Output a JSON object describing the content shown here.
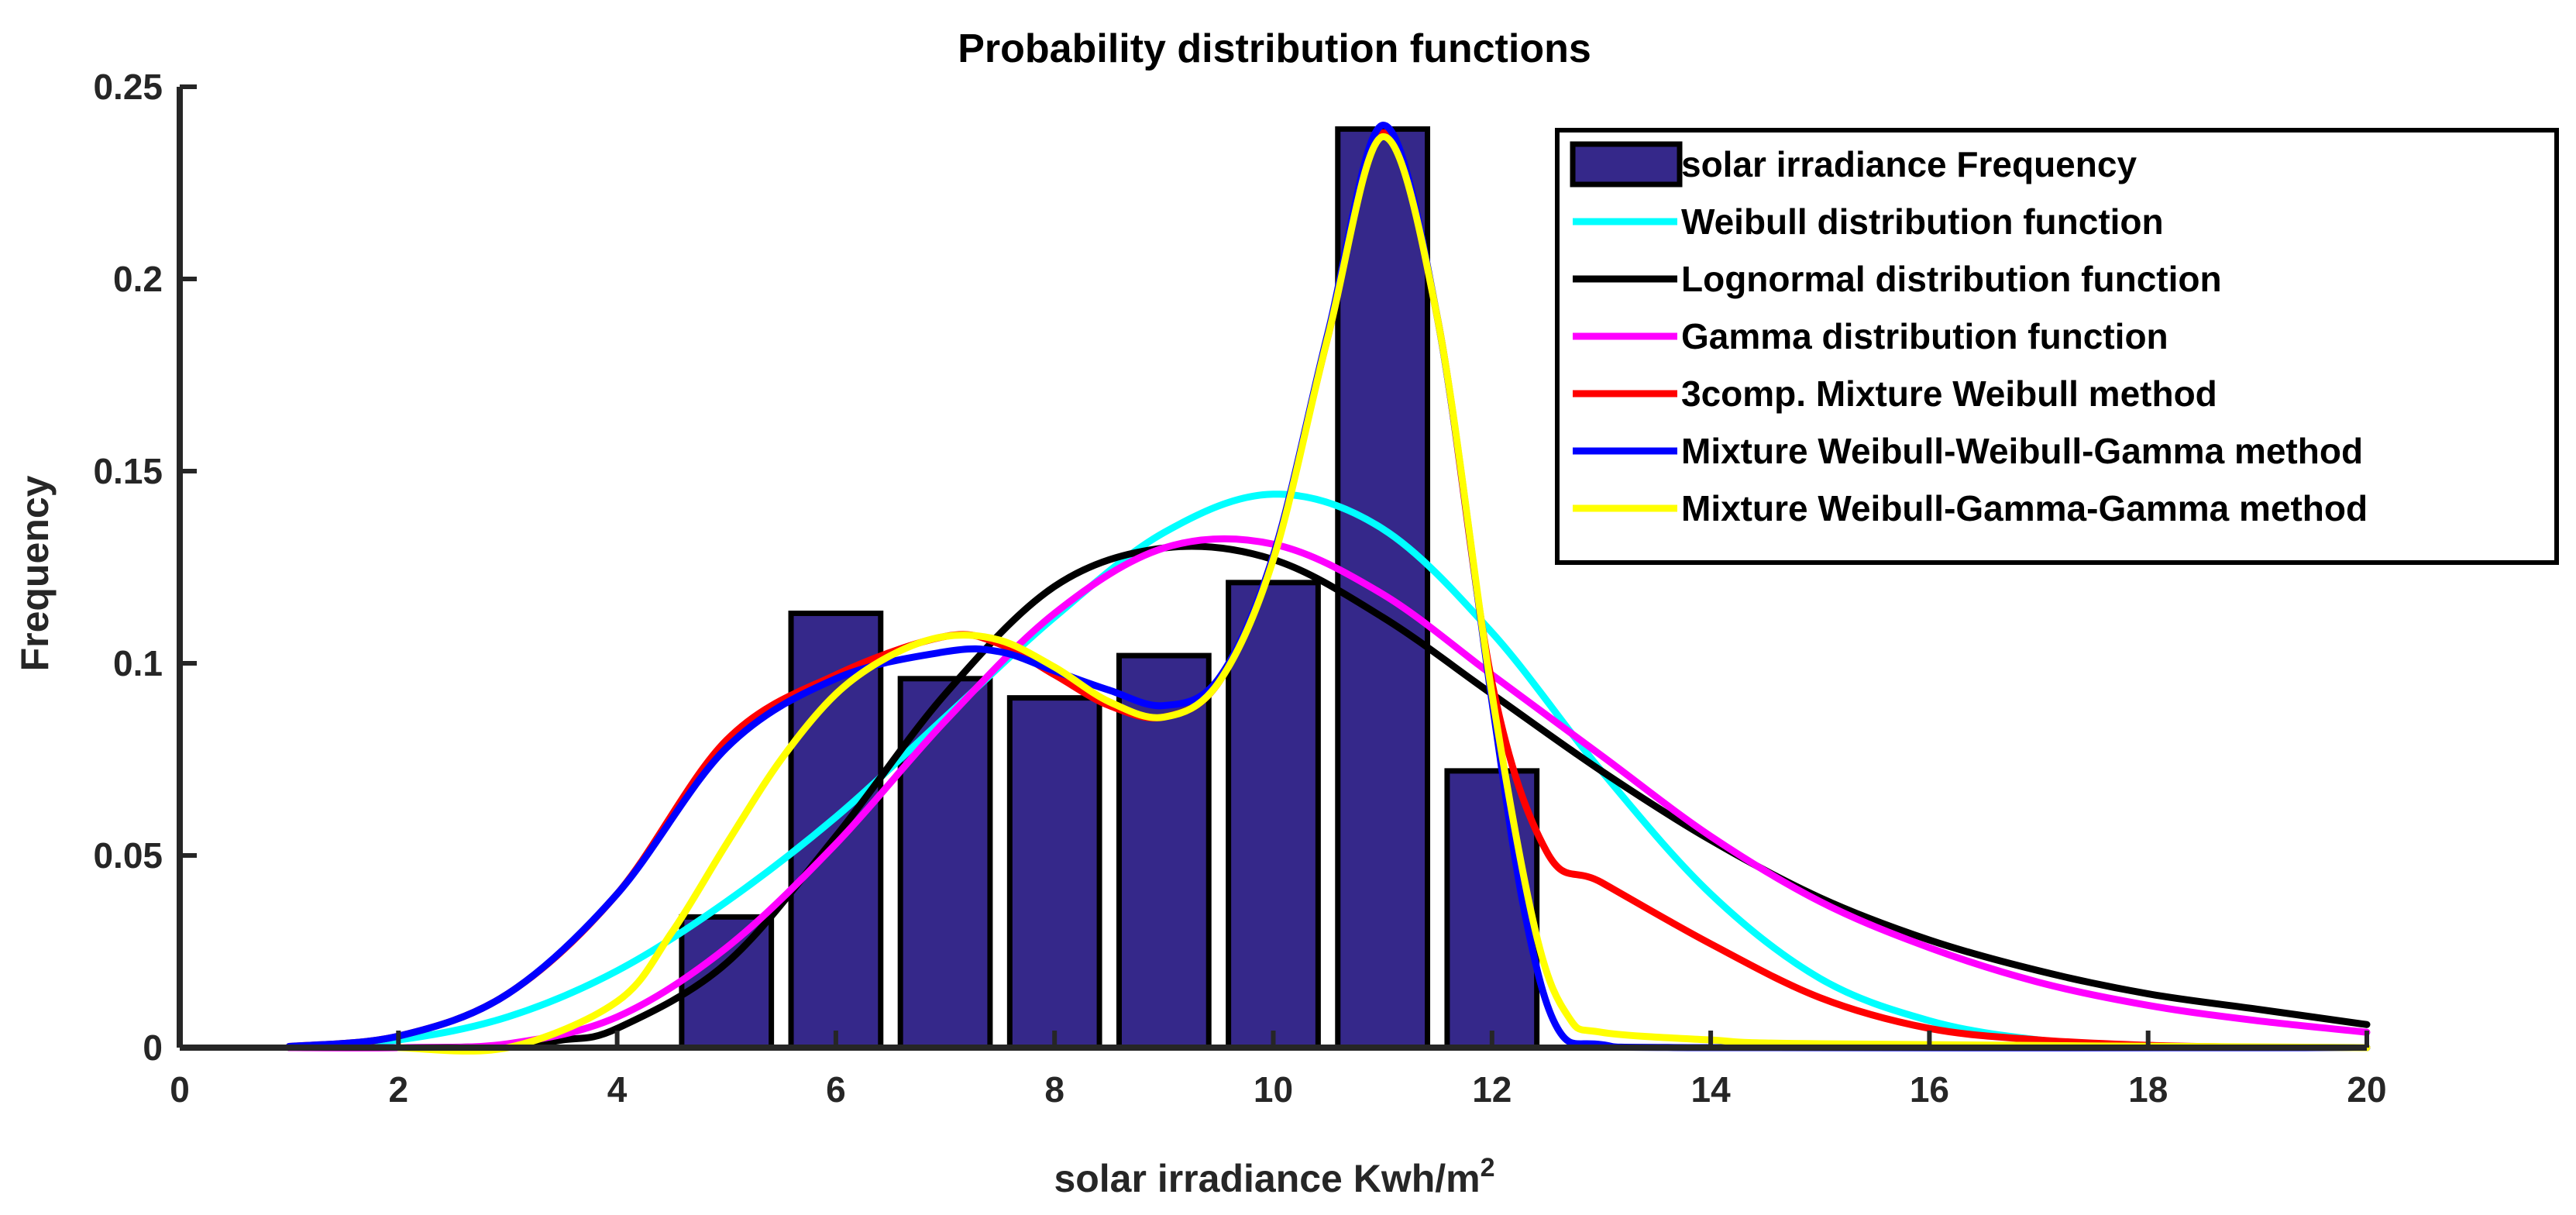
{
  "chart_data": {
    "type": "bar",
    "title": "Probability distribution functions",
    "xlabel": "solar irradiance Kwh/m",
    "xlabel_sup": "2",
    "ylabel": "Frequency",
    "xlim": [
      0,
      20
    ],
    "ylim": [
      0,
      0.25
    ],
    "xticks": [
      "0",
      "2",
      "4",
      "6",
      "8",
      "10",
      "12",
      "14",
      "16",
      "18",
      "20"
    ],
    "yticks": [
      "0",
      "0.05",
      "0.1",
      "0.15",
      "0.2",
      "0.25"
    ],
    "legend_position": "top-right",
    "histogram": {
      "name": "solar irradiance Frequency",
      "color": "#35288a",
      "bin_width": 1,
      "centers": [
        5,
        6,
        7,
        8,
        9,
        10,
        11,
        12
      ],
      "values": [
        0.034,
        0.113,
        0.096,
        0.091,
        0.102,
        0.121,
        0.239,
        0.072
      ]
    },
    "series": [
      {
        "name": "Weibull distribution function",
        "color": "#00ffff",
        "x": [
          1,
          2,
          3,
          4,
          5,
          6,
          7,
          8,
          9,
          10,
          11,
          12,
          13,
          14,
          15,
          16,
          17,
          18,
          19,
          20
        ],
        "y": [
          0.0001,
          0.002,
          0.008,
          0.02,
          0.038,
          0.06,
          0.086,
          0.112,
          0.134,
          0.144,
          0.135,
          0.108,
          0.072,
          0.04,
          0.018,
          0.007,
          0.002,
          0.0005,
          0.0001,
          0.0
        ]
      },
      {
        "name": " Lognormal distribution function",
        "color": "#000000",
        "x": [
          1,
          2,
          3,
          3.5,
          4,
          5,
          6,
          7,
          8,
          9,
          10,
          11,
          12,
          13,
          14,
          15,
          16,
          17,
          18,
          19,
          20
        ],
        "y": [
          0.0,
          0.0,
          0.0004,
          0.002,
          0.005,
          0.022,
          0.055,
          0.092,
          0.12,
          0.13,
          0.127,
          0.112,
          0.092,
          0.072,
          0.054,
          0.039,
          0.028,
          0.02,
          0.014,
          0.01,
          0.006
        ]
      },
      {
        "name": "Gamma distribution function",
        "color": "#ff00ff",
        "x": [
          1,
          2,
          3,
          4,
          5,
          6,
          7,
          8,
          9,
          10,
          11,
          12,
          13,
          14,
          15,
          16,
          17,
          18,
          19,
          20
        ],
        "y": [
          0.0,
          0.0,
          0.001,
          0.008,
          0.026,
          0.053,
          0.085,
          0.113,
          0.13,
          0.131,
          0.118,
          0.097,
          0.076,
          0.055,
          0.038,
          0.026,
          0.017,
          0.011,
          0.007,
          0.004
        ]
      },
      {
        "name": "3comp. Mixture Weibull method",
        "color": "#ff0000",
        "x": [
          1,
          2,
          3,
          4,
          5,
          6,
          7,
          7.5,
          8,
          8.5,
          9,
          9.5,
          10,
          10.5,
          11,
          11.5,
          12,
          12.5,
          13,
          14,
          15,
          16,
          17,
          18,
          19,
          20
        ],
        "y": [
          0.0003,
          0.003,
          0.014,
          0.04,
          0.08,
          0.097,
          0.107,
          0.105,
          0.097,
          0.089,
          0.086,
          0.095,
          0.128,
          0.185,
          0.238,
          0.19,
          0.095,
          0.051,
          0.043,
          0.027,
          0.013,
          0.005,
          0.002,
          0.0006,
          0.0001,
          0.0
        ]
      },
      {
        "name": "Mixture Weibull-Weibull-Gamma method",
        "color": "#0000ff",
        "x": [
          1,
          2,
          3,
          4,
          5,
          6,
          7,
          7.5,
          8,
          8.5,
          9,
          9.5,
          10,
          10.5,
          11,
          11.5,
          12,
          12.3,
          12.6,
          13,
          14,
          20
        ],
        "y": [
          0.0003,
          0.003,
          0.014,
          0.04,
          0.078,
          0.096,
          0.103,
          0.103,
          0.098,
          0.093,
          0.089,
          0.096,
          0.128,
          0.186,
          0.24,
          0.19,
          0.09,
          0.035,
          0.005,
          0.0008,
          0.0,
          0.0
        ]
      },
      {
        "name": "Mixture Weibull-Gamma-Gamma method",
        "color": "#ffff00",
        "x": [
          2,
          3,
          4,
          4.5,
          5,
          5.5,
          6,
          6.5,
          7,
          7.5,
          8,
          8.5,
          9,
          9.5,
          10,
          10.5,
          11,
          11.5,
          12,
          12.4,
          12.7,
          13,
          14,
          15,
          20
        ],
        "y": [
          0.0,
          0.0,
          0.012,
          0.03,
          0.053,
          0.075,
          0.092,
          0.102,
          0.107,
          0.106,
          0.099,
          0.09,
          0.086,
          0.095,
          0.127,
          0.185,
          0.237,
          0.19,
          0.092,
          0.03,
          0.008,
          0.004,
          0.002,
          0.001,
          0.0
        ]
      }
    ]
  }
}
